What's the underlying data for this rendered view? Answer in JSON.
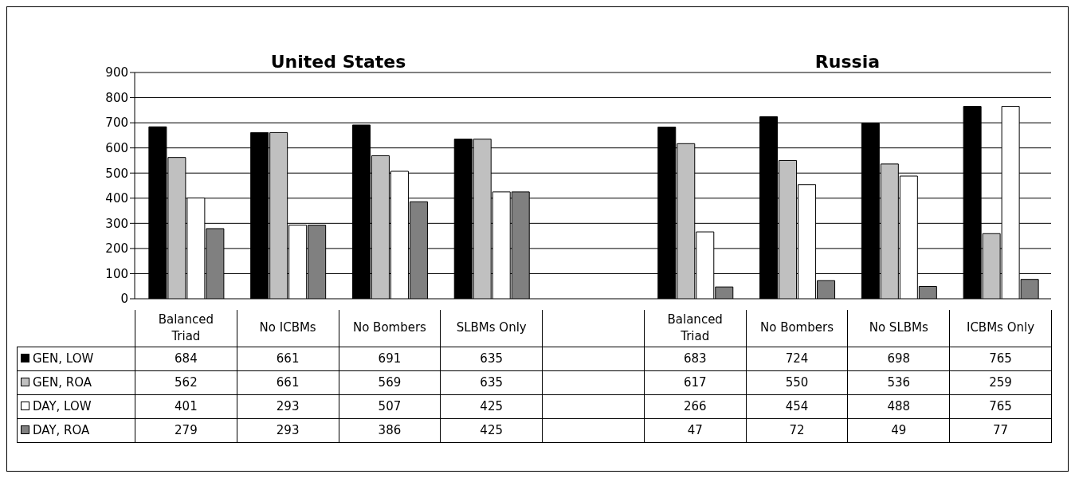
{
  "chart_data": {
    "type": "bar",
    "annotations": [
      "United States",
      "Russia"
    ],
    "categories": [
      "Balanced Triad",
      "No ICBMs",
      "No Bombers",
      "SLBMs Only",
      null,
      "Balanced Triad",
      "No Bombers",
      "No SLBMs",
      "ICBMs Only"
    ],
    "series": [
      {
        "name": "GEN, LOW",
        "color": "#000000",
        "values": [
          684,
          661,
          691,
          635,
          null,
          683,
          724,
          698,
          765
        ]
      },
      {
        "name": "GEN, ROA",
        "color": "#c0c0c0",
        "values": [
          562,
          661,
          569,
          635,
          null,
          617,
          550,
          536,
          259
        ]
      },
      {
        "name": "DAY, LOW",
        "color": "#ffffff",
        "values": [
          401,
          293,
          507,
          425,
          null,
          266,
          454,
          488,
          765
        ]
      },
      {
        "name": "DAY, ROA",
        "color": "#808080",
        "values": [
          279,
          293,
          386,
          425,
          null,
          47,
          72,
          49,
          77
        ]
      }
    ],
    "ylim": [
      0,
      900
    ],
    "yticks": [
      0,
      100,
      200,
      300,
      400,
      500,
      600,
      700,
      800,
      900
    ],
    "grid": "y",
    "legend": "bottom left",
    "data_labels": true
  }
}
